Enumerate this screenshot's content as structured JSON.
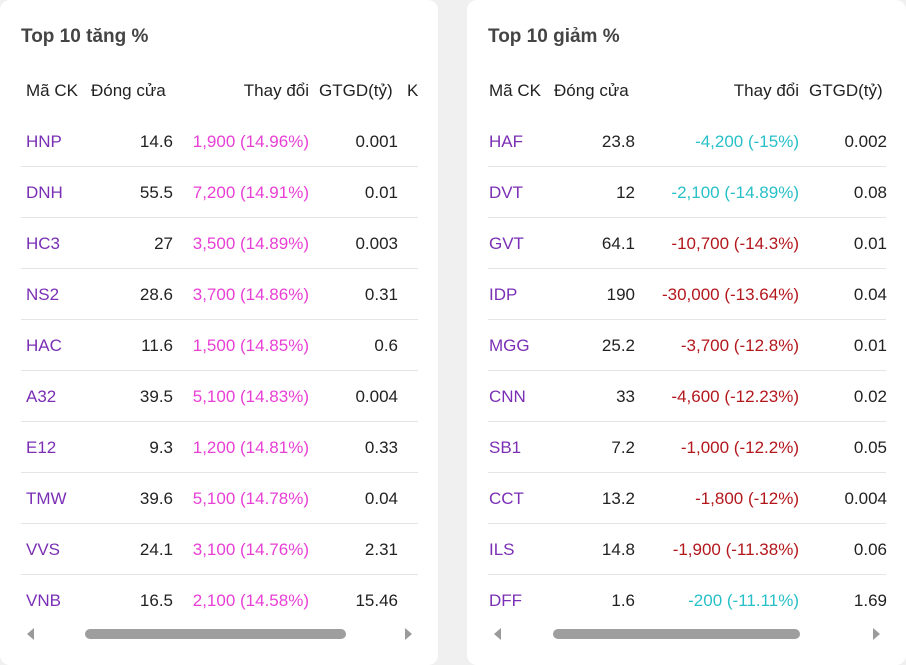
{
  "left": {
    "title": "Top 10 tăng %",
    "headers": {
      "symbol": "Mã CK",
      "close": "Đóng cửa",
      "change": "Thay đổi",
      "value": "GTGD(tỷ)",
      "extra": "K"
    },
    "rows": [
      {
        "symbol": "HNP",
        "close": "14.6",
        "change": "1,900 (14.96%)",
        "value": "0.001",
        "tone": "up"
      },
      {
        "symbol": "DNH",
        "close": "55.5",
        "change": "7,200 (14.91%)",
        "value": "0.01",
        "tone": "up"
      },
      {
        "symbol": "HC3",
        "close": "27",
        "change": "3,500 (14.89%)",
        "value": "0.003",
        "tone": "up"
      },
      {
        "symbol": "NS2",
        "close": "28.6",
        "change": "3,700 (14.86%)",
        "value": "0.31",
        "tone": "up"
      },
      {
        "symbol": "HAC",
        "close": "11.6",
        "change": "1,500 (14.85%)",
        "value": "0.6",
        "tone": "up"
      },
      {
        "symbol": "A32",
        "close": "39.5",
        "change": "5,100 (14.83%)",
        "value": "0.004",
        "tone": "up"
      },
      {
        "symbol": "E12",
        "close": "9.3",
        "change": "1,200 (14.81%)",
        "value": "0.33",
        "tone": "up"
      },
      {
        "symbol": "TMW",
        "close": "39.6",
        "change": "5,100 (14.78%)",
        "value": "0.04",
        "tone": "up"
      },
      {
        "symbol": "VVS",
        "close": "24.1",
        "change": "3,100 (14.76%)",
        "value": "2.31",
        "tone": "up"
      },
      {
        "symbol": "VNB",
        "close": "16.5",
        "change": "2,100 (14.58%)",
        "value": "15.46",
        "tone": "up"
      }
    ]
  },
  "right": {
    "title": "Top 10 giảm %",
    "headers": {
      "symbol": "Mã CK",
      "close": "Đóng cửa",
      "change": "Thay đổi",
      "value": "GTGD(tỷ)"
    },
    "rows": [
      {
        "symbol": "HAF",
        "close": "23.8",
        "change": "-4,200 (-15%)",
        "value": "0.002",
        "tone": "down-floor"
      },
      {
        "symbol": "DVT",
        "close": "12",
        "change": "-2,100 (-14.89%)",
        "value": "0.08",
        "tone": "down-floor"
      },
      {
        "symbol": "GVT",
        "close": "64.1",
        "change": "-10,700 (-14.3%)",
        "value": "0.01",
        "tone": "down"
      },
      {
        "symbol": "IDP",
        "close": "190",
        "change": "-30,000 (-13.64%)",
        "value": "0.04",
        "tone": "down"
      },
      {
        "symbol": "MGG",
        "close": "25.2",
        "change": "-3,700 (-12.8%)",
        "value": "0.01",
        "tone": "down"
      },
      {
        "symbol": "CNN",
        "close": "33",
        "change": "-4,600 (-12.23%)",
        "value": "0.02",
        "tone": "down"
      },
      {
        "symbol": "SB1",
        "close": "7.2",
        "change": "-1,000 (-12.2%)",
        "value": "0.05",
        "tone": "down"
      },
      {
        "symbol": "CCT",
        "close": "13.2",
        "change": "-1,800 (-12%)",
        "value": "0.004",
        "tone": "down"
      },
      {
        "symbol": "ILS",
        "close": "14.8",
        "change": "-1,900 (-11.38%)",
        "value": "0.06",
        "tone": "down"
      },
      {
        "symbol": "DFF",
        "close": "1.6",
        "change": "-200 (-11.11%)",
        "value": "1.69",
        "tone": "down-floor"
      }
    ]
  },
  "colors": {
    "up": "#e83fd5",
    "down": "#b3171c",
    "floor": "#28c0c8",
    "symbol": "#7a2fb5"
  }
}
